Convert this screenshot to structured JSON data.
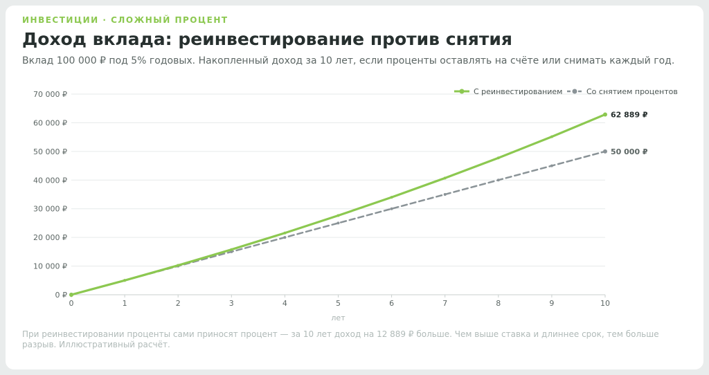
{
  "header": {
    "eyebrow": "ИНВЕСТИЦИИ · СЛОЖНЫЙ ПРОЦЕНТ",
    "title": "Доход вклада: реинвестирование против снятия",
    "subtitle": "Вклад 100 000 ₽ под 5% годовых. Накопленный доход за 10 лет, если проценты оставлять на счёте или снимать каждый год."
  },
  "footnote": "При реинвестировании проценты сами приносят процент — за 10 лет доход на 12 889 ₽ больше. Чем выше ставка и длиннее срок, тем больше разрыв. Иллюстративный расчёт.",
  "chart_data": {
    "type": "line",
    "xlabel": "лет",
    "ylabel": "",
    "x": [
      0,
      1,
      2,
      3,
      4,
      5,
      6,
      7,
      8,
      9,
      10
    ],
    "xlim": [
      0,
      10
    ],
    "ylim": [
      0,
      70000
    ],
    "y_ticks": [
      0,
      10000,
      20000,
      30000,
      40000,
      50000,
      60000,
      70000
    ],
    "y_tick_labels": [
      "0 ₽",
      "10 000 ₽",
      "20 000 ₽",
      "30 000 ₽",
      "40 000 ₽",
      "50 000 ₽",
      "60 000 ₽",
      "70 000 ₽"
    ],
    "x_tick_labels": [
      "0",
      "1",
      "2",
      "3",
      "4",
      "5",
      "6",
      "7",
      "8",
      "9",
      "10"
    ],
    "grid": true,
    "legend_position": "top-right",
    "series": [
      {
        "name": "С реинвестированием",
        "values": [
          0,
          5000,
          10250,
          15763,
          21551,
          27628,
          34010,
          40710,
          47746,
          55133,
          62889
        ],
        "color": "#8cc850",
        "style": "solid",
        "end_label": "62 889 ₽"
      },
      {
        "name": "Со снятием процентов",
        "values": [
          0,
          5000,
          10000,
          15000,
          20000,
          25000,
          30000,
          35000,
          40000,
          45000,
          50000
        ],
        "color": "#8a9397",
        "style": "dashed",
        "end_label": "50 000 ₽"
      }
    ]
  }
}
